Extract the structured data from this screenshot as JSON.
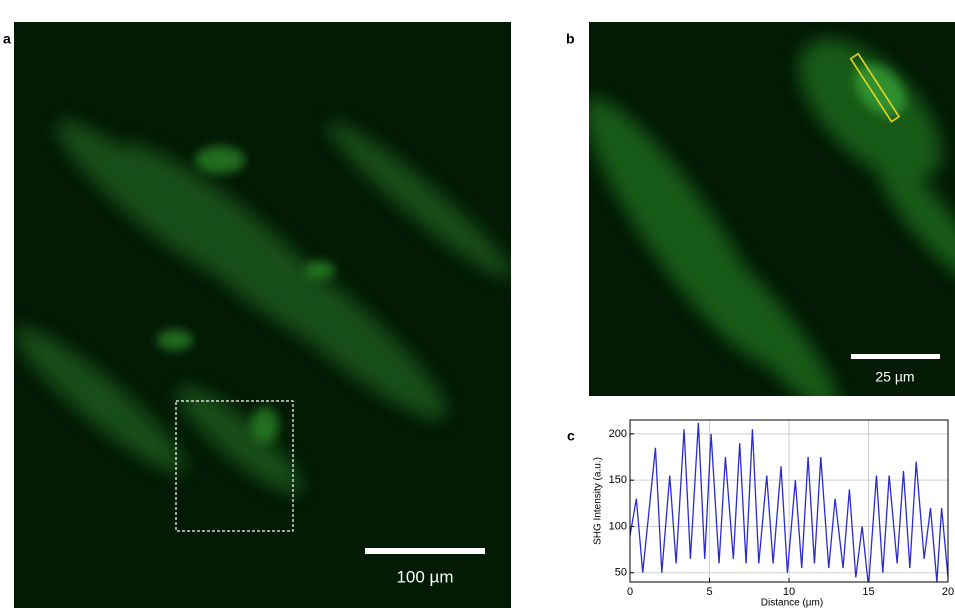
{
  "panels": {
    "a": {
      "label": "a",
      "scale_bar": "100 µm"
    },
    "b": {
      "label": "b",
      "scale_bar": "25 µm"
    },
    "c": {
      "label": "c"
    }
  },
  "chart_data": {
    "type": "line",
    "xlabel": "Distance (µm)",
    "ylabel": "SHG Intensity (a.u.)",
    "x": [
      0,
      0.4,
      0.8,
      1.6,
      2.0,
      2.5,
      2.9,
      3.4,
      3.8,
      4.3,
      4.7,
      5.1,
      5.6,
      6.0,
      6.5,
      6.9,
      7.3,
      7.7,
      8.1,
      8.6,
      9.0,
      9.5,
      9.9,
      10.4,
      10.8,
      11.2,
      11.6,
      12.0,
      12.5,
      12.9,
      13.4,
      13.8,
      14.2,
      14.6,
      15.0,
      15.5,
      15.9,
      16.3,
      16.8,
      17.2,
      17.6,
      18.0,
      18.5,
      18.9,
      19.3,
      19.6,
      20
    ],
    "series": [
      {
        "color": "#2b2bd0",
        "values": [
          90,
          130,
          50,
          185,
          50,
          155,
          60,
          205,
          65,
          212,
          65,
          200,
          60,
          175,
          65,
          190,
          60,
          205,
          60,
          155,
          60,
          165,
          50,
          150,
          55,
          175,
          60,
          175,
          55,
          130,
          55,
          140,
          45,
          100,
          35,
          155,
          50,
          155,
          60,
          160,
          55,
          170,
          65,
          120,
          40,
          120,
          45
        ]
      }
    ],
    "xlim": [
      0,
      20
    ],
    "xticks": [
      0,
      5,
      10,
      15,
      20
    ],
    "ylim": [
      40,
      215
    ],
    "yticks": [
      50,
      100,
      150,
      200
    ],
    "grid": true
  }
}
